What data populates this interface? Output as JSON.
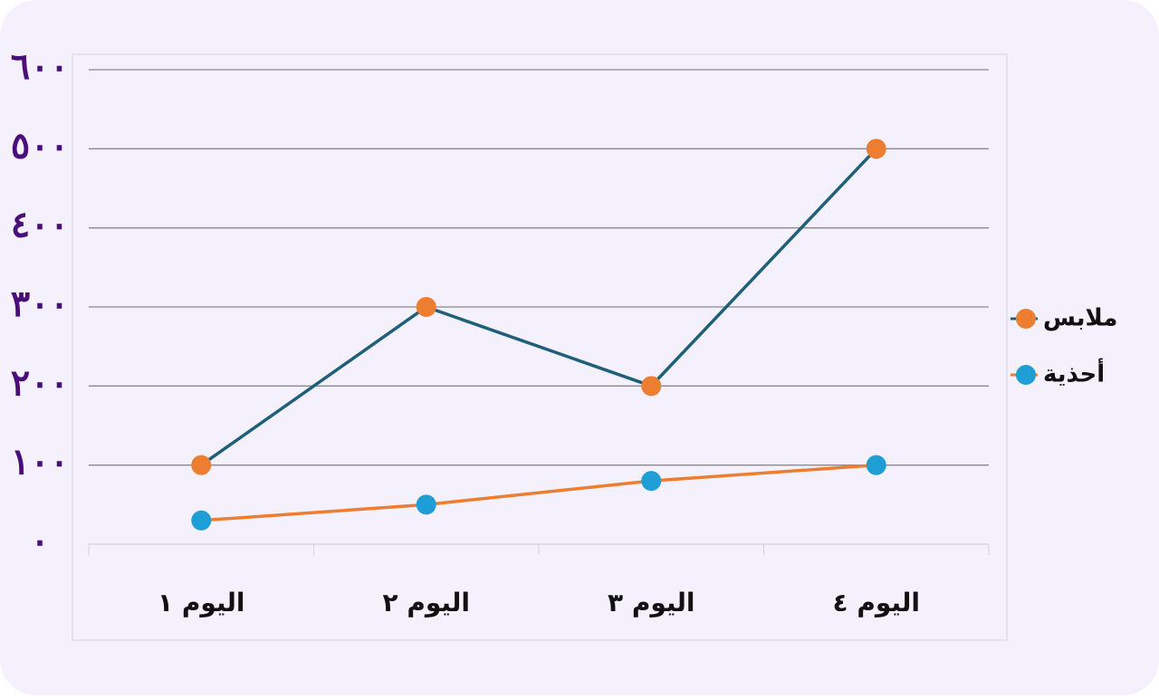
{
  "chart_data": {
    "type": "line",
    "categories": [
      "اليوم ١",
      "اليوم ٢",
      "اليوم ٣",
      "اليوم ٤"
    ],
    "series": [
      {
        "name": "ملابس",
        "color": "#1f5f78",
        "marker_color": "#ed7d31",
        "values": [
          100,
          300,
          200,
          500
        ]
      },
      {
        "name": "أحذية",
        "color": "#ed7d31",
        "marker_color": "#1f9ed6",
        "values": [
          30,
          50,
          80,
          100
        ]
      }
    ],
    "ylim": [
      0,
      600
    ],
    "yticks": [
      {
        "value": 0,
        "label": "٠"
      },
      {
        "value": 100,
        "label": "١٠٠"
      },
      {
        "value": 200,
        "label": "٢٠٠"
      },
      {
        "value": 300,
        "label": "٣٠٠"
      },
      {
        "value": 400,
        "label": "٤٠٠"
      },
      {
        "value": 500,
        "label": "٥٠٠"
      },
      {
        "value": 600,
        "label": "٦٠٠"
      }
    ],
    "grid": true,
    "legend": "right"
  }
}
